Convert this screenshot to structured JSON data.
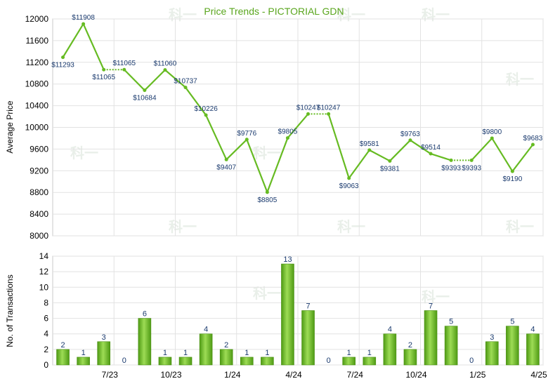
{
  "chart_data": [
    {
      "type": "line",
      "title": "Price Trends - PICTORIAL GDN",
      "ylabel": "Average Price",
      "ylim": [
        8000,
        12000
      ],
      "yticks": [
        8000,
        8400,
        8800,
        9200,
        9600,
        10000,
        10400,
        10800,
        11200,
        11600,
        12000
      ],
      "grid": true,
      "line_color": "#66bb22",
      "points": [
        {
          "i": 0,
          "value": 11293,
          "label": "$11293"
        },
        {
          "i": 1,
          "value": 11908,
          "label": "$11908"
        },
        {
          "i": 2,
          "value": 11065,
          "label": "$11065"
        },
        {
          "i": 3,
          "value": 11065,
          "label": "$11065",
          "carried": true
        },
        {
          "i": 4,
          "value": 10684,
          "label": "$10684"
        },
        {
          "i": 5,
          "value": 11060,
          "label": "$11060"
        },
        {
          "i": 6,
          "value": 10737,
          "label": "$10737"
        },
        {
          "i": 7,
          "value": 10226,
          "label": "$10226"
        },
        {
          "i": 8,
          "value": 9407,
          "label": "$9407"
        },
        {
          "i": 9,
          "value": 9776,
          "label": "$9776"
        },
        {
          "i": 10,
          "value": 8805,
          "label": "$8805"
        },
        {
          "i": 11,
          "value": 9805,
          "label": "$9805"
        },
        {
          "i": 12,
          "value": 10247,
          "label": "$10247"
        },
        {
          "i": 13,
          "value": 10247,
          "label": "$10247",
          "carried": true
        },
        {
          "i": 14,
          "value": 9063,
          "label": "$9063"
        },
        {
          "i": 15,
          "value": 9581,
          "label": "$9581"
        },
        {
          "i": 16,
          "value": 9381,
          "label": "$9381"
        },
        {
          "i": 17,
          "value": 9763,
          "label": "$9763"
        },
        {
          "i": 18,
          "value": 9514,
          "label": "$9514"
        },
        {
          "i": 19,
          "value": 9393,
          "label": "$9393"
        },
        {
          "i": 20,
          "value": 9393,
          "label": "$9393",
          "carried": true
        },
        {
          "i": 21,
          "value": 9800,
          "label": "$9800"
        },
        {
          "i": 22,
          "value": 9190,
          "label": "$9190"
        },
        {
          "i": 23,
          "value": 9683,
          "label": "$9683"
        }
      ]
    },
    {
      "type": "bar",
      "ylabel": "No. of Transactions",
      "ylim": [
        0,
        14
      ],
      "yticks": [
        0,
        2,
        4,
        6,
        8,
        10,
        12,
        14
      ],
      "grid": true,
      "bar_color": "#66bb22",
      "values": [
        2,
        1,
        3,
        0,
        6,
        1,
        1,
        4,
        2,
        1,
        1,
        13,
        7,
        0,
        1,
        1,
        4,
        2,
        7,
        5,
        0,
        3,
        5,
        4
      ],
      "x_ticks": [
        {
          "i": 2,
          "label": "7/23"
        },
        {
          "i": 5,
          "label": "10/23"
        },
        {
          "i": 8,
          "label": "1/24"
        },
        {
          "i": 11,
          "label": "4/24"
        },
        {
          "i": 14,
          "label": "7/24"
        },
        {
          "i": 17,
          "label": "10/24"
        },
        {
          "i": 20,
          "label": "1/25"
        },
        {
          "i": 23,
          "label": "4/25"
        }
      ]
    }
  ],
  "watermark": "科一"
}
